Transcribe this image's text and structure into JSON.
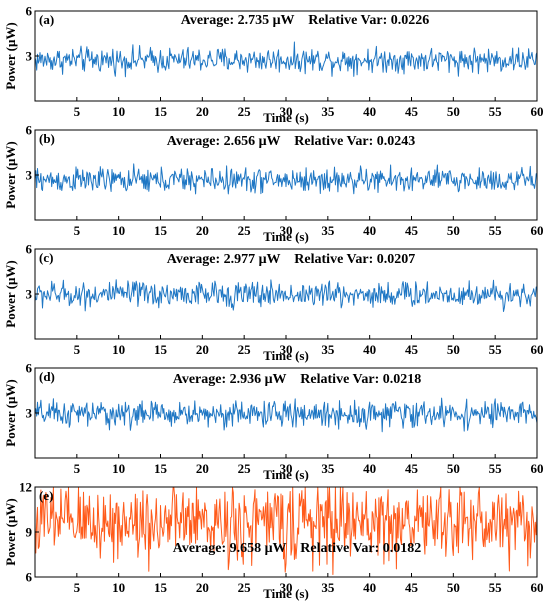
{
  "chart_data": [
    {
      "type": "line",
      "panel_label": "(a)",
      "annotation": "Average: 2.735 μW    Relative Var: 0.0226",
      "xlabel": "Time (s)",
      "ylabel": "Power (μW)",
      "xlim": [
        0,
        60
      ],
      "ylim": [
        0,
        6
      ],
      "xticks": [
        "5",
        "10",
        "15",
        "20",
        "25",
        "30",
        "35",
        "40",
        "45",
        "50",
        "55",
        "60"
      ],
      "yticks": [
        "3",
        "6"
      ],
      "mean": 2.735,
      "relative_var": 0.0226,
      "color": "#1f77c4"
    },
    {
      "type": "line",
      "panel_label": "(b)",
      "annotation": "Average: 2.656 μW    Relative Var: 0.0243",
      "xlabel": "Time (s)",
      "ylabel": "Power (μW)",
      "xlim": [
        0,
        60
      ],
      "ylim": [
        0,
        6
      ],
      "xticks": [
        "5",
        "10",
        "15",
        "20",
        "25",
        "30",
        "35",
        "40",
        "45",
        "50",
        "55",
        "60"
      ],
      "yticks": [
        "3",
        "6"
      ],
      "mean": 2.656,
      "relative_var": 0.0243,
      "color": "#1f77c4"
    },
    {
      "type": "line",
      "panel_label": "(c)",
      "annotation": "Average: 2.977 μW    Relative Var: 0.0207",
      "xlabel": "Time (s)",
      "ylabel": "Power (μW)",
      "xlim": [
        0,
        60
      ],
      "ylim": [
        0,
        6
      ],
      "xticks": [
        "5",
        "10",
        "15",
        "20",
        "25",
        "30",
        "35",
        "40",
        "45",
        "50",
        "55",
        "60"
      ],
      "yticks": [
        "3",
        "6"
      ],
      "mean": 2.977,
      "relative_var": 0.0207,
      "color": "#1f77c4"
    },
    {
      "type": "line",
      "panel_label": "(d)",
      "annotation": "Average: 2.936 μW    Relative Var: 0.0218",
      "xlabel": "Time (s)",
      "ylabel": "Power (μW)",
      "xlim": [
        0,
        60
      ],
      "ylim": [
        0,
        6
      ],
      "xticks": [
        "5",
        "10",
        "15",
        "20",
        "25",
        "30",
        "35",
        "40",
        "45",
        "50",
        "55",
        "60"
      ],
      "yticks": [
        "3",
        "6"
      ],
      "mean": 2.936,
      "relative_var": 0.0218,
      "color": "#1f77c4"
    },
    {
      "type": "line",
      "panel_label": "(e)",
      "annotation": "Average: 9.658 μW    Relative Var: 0.0182",
      "xlabel": "Time (s)",
      "ylabel": "Power (μW)",
      "xlim": [
        0,
        60
      ],
      "ylim": [
        6,
        12
      ],
      "xticks": [
        "5",
        "10",
        "15",
        "20",
        "25",
        "30",
        "35",
        "40",
        "45",
        "50",
        "55",
        "60"
      ],
      "yticks": [
        "6",
        "9",
        "12"
      ],
      "mean": 9.658,
      "relative_var": 0.0182,
      "color": "#ff5a1a"
    }
  ]
}
